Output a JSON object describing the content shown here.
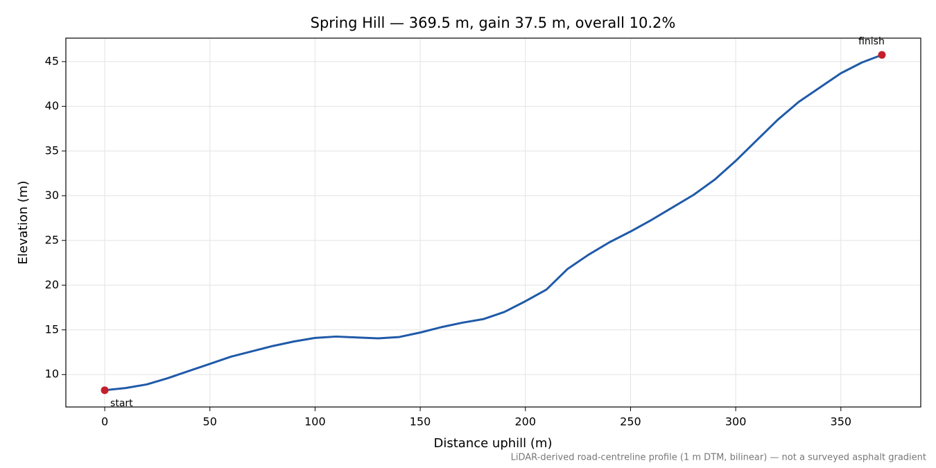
{
  "chart_data": {
    "type": "line",
    "title": "Spring Hill — 369.5 m, gain 37.5 m, overall 10.2%",
    "x_label": "Distance uphill (m)",
    "y_label": "Elevation (m)",
    "footnote": "LiDAR-derived road-centreline profile (1 m DTM, bilinear) — not a surveyed asphalt gradient",
    "xlim": [
      -18.475,
      387.975
    ],
    "ylim": [
      6.375,
      47.625
    ],
    "xticks": [
      0,
      50,
      100,
      150,
      200,
      250,
      300,
      350
    ],
    "yticks": [
      10,
      15,
      20,
      25,
      30,
      35,
      40,
      45
    ],
    "grid": true,
    "series": [
      {
        "name": "Elevation",
        "color": "#1f5aa8",
        "x": [
          0,
          10,
          20,
          30,
          40,
          50,
          60,
          70,
          80,
          90,
          100,
          110,
          120,
          130,
          140,
          150,
          160,
          170,
          180,
          190,
          200,
          210,
          220,
          230,
          240,
          250,
          260,
          270,
          280,
          290,
          300,
          310,
          320,
          330,
          340,
          350,
          360,
          369.5
        ],
        "values": [
          8.25,
          8.5,
          8.9,
          9.6,
          10.4,
          11.2,
          12.0,
          12.6,
          13.2,
          13.7,
          14.1,
          14.25,
          14.15,
          14.05,
          14.2,
          14.7,
          15.3,
          15.8,
          16.2,
          17.0,
          18.2,
          19.5,
          21.8,
          23.4,
          24.8,
          26.0,
          27.3,
          28.7,
          30.1,
          31.8,
          33.9,
          36.2,
          38.5,
          40.5,
          42.1,
          43.7,
          44.9,
          45.75
        ]
      }
    ],
    "markers": {
      "color": "#c41f2b",
      "points": [
        {
          "label": "start",
          "x": 0,
          "y": 8.25
        },
        {
          "label": "finish",
          "x": 369.5,
          "y": 45.75
        }
      ]
    }
  }
}
